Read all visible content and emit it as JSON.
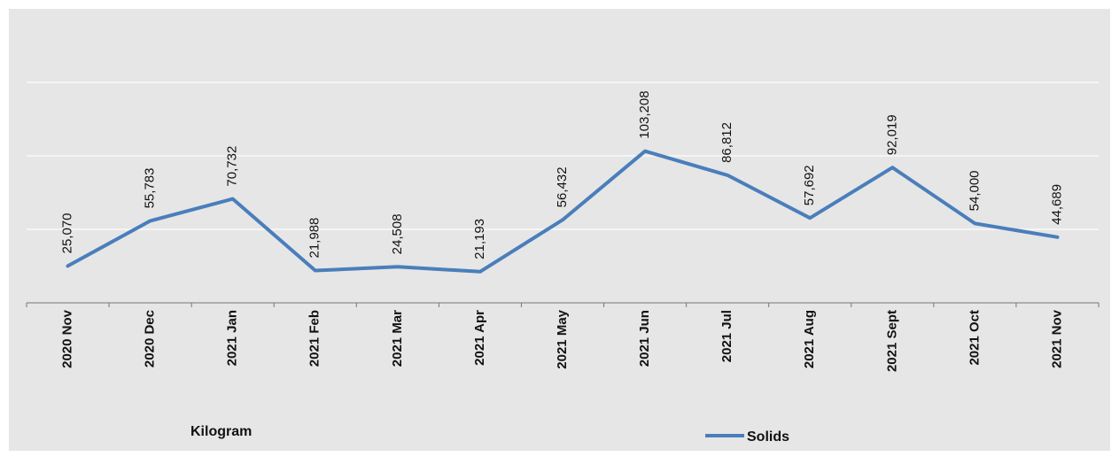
{
  "chart_data": {
    "type": "line",
    "categories": [
      "2020 Nov",
      "2020 Dec",
      "2021 Jan",
      "2021 Feb",
      "2021 Mar",
      "2021 Apr",
      "2021 May",
      "2021 Jun",
      "2021 Jul",
      "2021 Aug",
      "2021 Sept",
      "2021 Oct",
      "2021 Nov"
    ],
    "series": [
      {
        "name": "Solids",
        "values": [
          25070,
          55783,
          70732,
          21988,
          24508,
          21193,
          56432,
          103208,
          86812,
          57692,
          92019,
          54000,
          44689
        ],
        "labels": [
          "25,070",
          "55,783",
          "70,732",
          "21,988",
          "24,508",
          "21,193",
          "56,432",
          "103,208",
          "86,812",
          "57,692",
          "92,019",
          "54,000",
          "44,689"
        ],
        "color": "#4a7ebb"
      }
    ],
    "unit_label": "Kilogram",
    "ylim": [
      0,
      200000
    ],
    "grid": true,
    "legend_position": "bottom-right"
  },
  "colors": {
    "plot_background": "#e6e6e6",
    "gridline": "#f8f8f8",
    "axis": "#777777",
    "series": "#4a7ebb"
  }
}
